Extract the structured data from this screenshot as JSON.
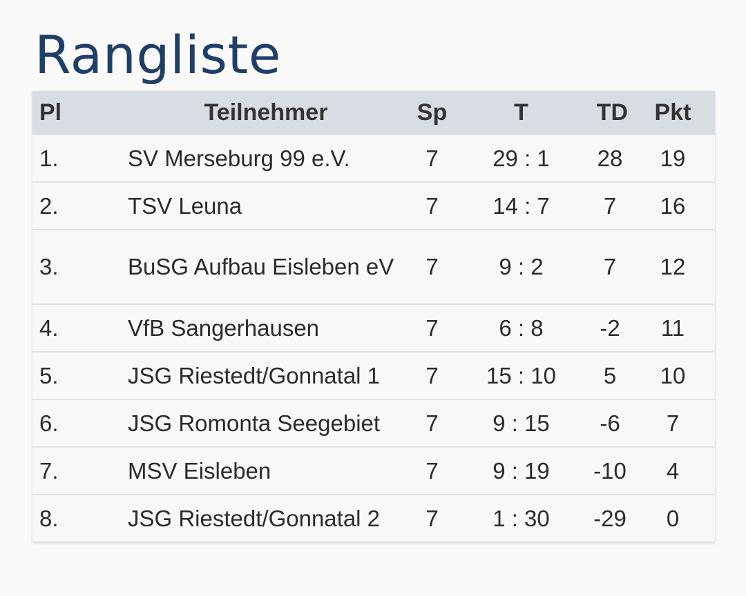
{
  "page": {
    "title": "Rangliste"
  },
  "table": {
    "headers": {
      "place": "Pl",
      "team": "Teilnehmer",
      "games": "Sp",
      "goals": "T",
      "goal_diff": "TD",
      "points": "Pkt"
    },
    "rows": [
      {
        "place": "1.",
        "team": "SV Merseburg 99 e.V.",
        "games": "7",
        "goals": "29 : 1",
        "goal_diff": "28",
        "points": "19"
      },
      {
        "place": "2.",
        "team": "TSV Leuna",
        "games": "7",
        "goals": "14 : 7",
        "goal_diff": "7",
        "points": "16"
      },
      {
        "place": "3.",
        "team": "BuSG Aufbau Eisleben eV",
        "games": "7",
        "goals": "9 : 2",
        "goal_diff": "7",
        "points": "12"
      },
      {
        "place": "4.",
        "team": "VfB Sangerhausen",
        "games": "7",
        "goals": "6 : 8",
        "goal_diff": "-2",
        "points": "11"
      },
      {
        "place": "5.",
        "team": "JSG Riestedt/Gonnatal 1",
        "games": "7",
        "goals": "15 : 10",
        "goal_diff": "5",
        "points": "10"
      },
      {
        "place": "6.",
        "team": "JSG Romonta Seegebiet",
        "games": "7",
        "goals": "9 : 15",
        "goal_diff": "-6",
        "points": "7"
      },
      {
        "place": "7.",
        "team": "MSV Eisleben",
        "games": "7",
        "goals": "9 : 19",
        "goal_diff": "-10",
        "points": "4"
      },
      {
        "place": "8.",
        "team": "JSG Riestedt/Gonnatal 2",
        "games": "7",
        "goals": "1 : 30",
        "goal_diff": "-29",
        "points": "0"
      }
    ]
  },
  "colors": {
    "title": "#1f3f69",
    "header_background": "#d8dde3",
    "row_background": "#f8f8f8",
    "text": "#2b2b2b"
  }
}
